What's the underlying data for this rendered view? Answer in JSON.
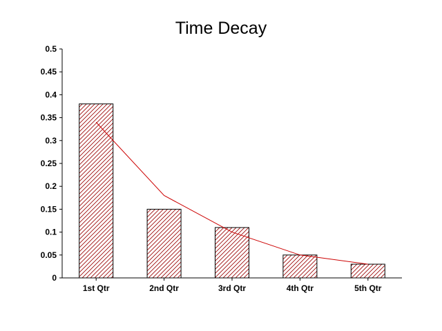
{
  "chart_data": {
    "type": "bar",
    "title": "Time Decay",
    "xlabel": "",
    "ylabel": "",
    "categories": [
      "1st Qtr",
      "2nd Qtr",
      "3rd Qtr",
      "4th Qtr",
      "5th Qtr"
    ],
    "series": [
      {
        "type": "bar",
        "values": [
          0.38,
          0.15,
          0.11,
          0.05,
          0.03
        ],
        "color": "#990000",
        "pattern": "diagonal-hatch"
      },
      {
        "type": "line",
        "values": [
          0.34,
          0.18,
          0.1,
          0.05,
          0.03
        ],
        "color": "#cc0000"
      }
    ],
    "ylim": [
      0,
      0.5
    ],
    "yticks": [
      "0",
      "0.05",
      "0.1",
      "0.15",
      "0.2",
      "0.25",
      "0.3",
      "0.35",
      "0.4",
      "0.45",
      "0.5"
    ],
    "grid": false,
    "legend": "none"
  }
}
